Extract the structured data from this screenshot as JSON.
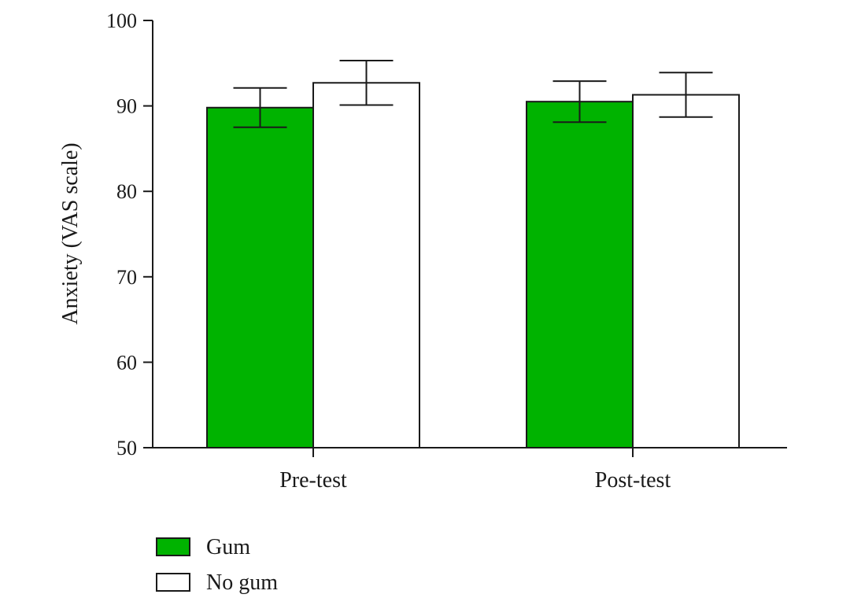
{
  "chart_data": {
    "type": "bar",
    "title": "",
    "xlabel": "",
    "ylabel": "Anxiety (VAS scale)",
    "ylim": [
      50,
      100
    ],
    "yticks": [
      50,
      60,
      70,
      80,
      90,
      100
    ],
    "categories": [
      "Pre-test",
      "Post-test"
    ],
    "series": [
      {
        "name": "Gum",
        "color": "#00b300",
        "values": [
          89.8,
          90.5
        ],
        "error": [
          2.3,
          2.4
        ]
      },
      {
        "name": "No gum",
        "color": "#ffffff",
        "values": [
          92.7,
          91.3
        ],
        "error": [
          2.6,
          2.6
        ]
      }
    ],
    "grid": false,
    "legend_position": "bottom-left"
  }
}
